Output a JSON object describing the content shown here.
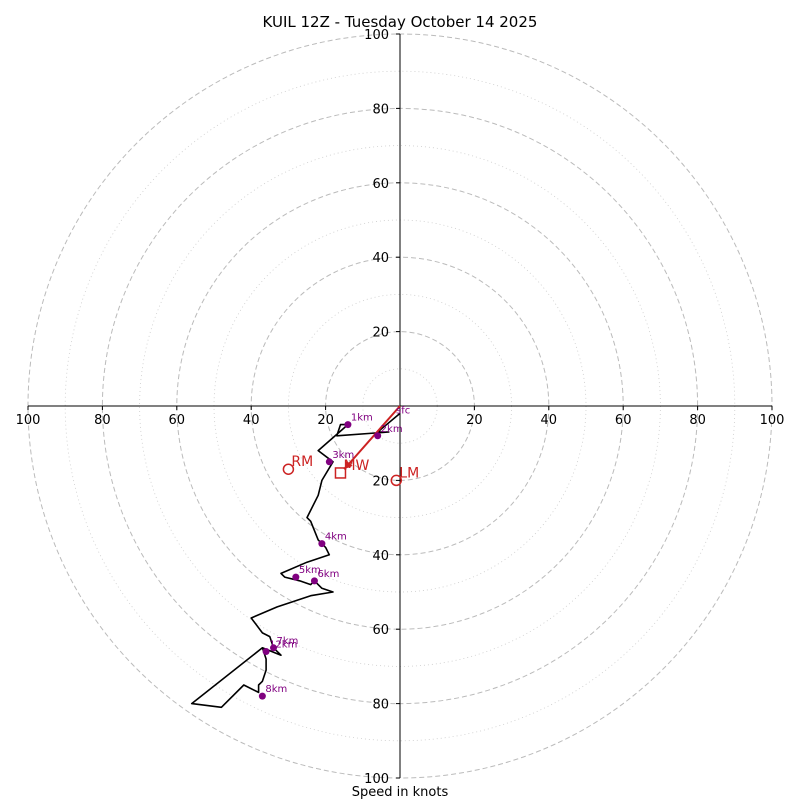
{
  "chart_data": {
    "type": "hodograph",
    "title": "KUIL 12Z - Tuesday October 14 2025",
    "xlabel": "Speed in knots",
    "xlim": [
      -100,
      100
    ],
    "ylim": [
      -100,
      100
    ],
    "ring_major": [
      20,
      40,
      60,
      80,
      100
    ],
    "ring_minor": [
      10,
      30,
      50,
      70,
      90
    ],
    "x_tick_labels": [
      "100",
      "80",
      "60",
      "40",
      "20",
      "20",
      "40",
      "60",
      "80",
      "100"
    ],
    "x_tick_values": [
      -100,
      -80,
      -60,
      -40,
      -20,
      20,
      40,
      60,
      80,
      100
    ],
    "y_top_tick_labels": [
      "20",
      "40",
      "60",
      "80",
      "100"
    ],
    "y_top_tick_values": [
      20,
      40,
      60,
      80,
      100
    ],
    "y_bottom_tick_labels": [
      "20",
      "40",
      "60",
      "80",
      "100"
    ],
    "y_bottom_tick_values": [
      -20,
      -40,
      -60,
      -80,
      -100
    ],
    "wind_trace": [
      [
        0,
        -2
      ],
      [
        -6,
        -7
      ],
      [
        -3,
        -7
      ],
      [
        -17,
        -8
      ],
      [
        -16,
        -5
      ],
      [
        -14,
        -5
      ],
      [
        -22,
        -12
      ],
      [
        -18,
        -15
      ],
      [
        -21,
        -20
      ],
      [
        -22,
        -24
      ],
      [
        -25,
        -30
      ],
      [
        -24,
        -31
      ],
      [
        -22,
        -36
      ],
      [
        -20,
        -38
      ],
      [
        -19,
        -40
      ],
      [
        -25,
        -42
      ],
      [
        -32,
        -45
      ],
      [
        -31,
        -46
      ],
      [
        -27,
        -47
      ],
      [
        -24,
        -48
      ],
      [
        -23,
        -47
      ],
      [
        -21,
        -49
      ],
      [
        -18,
        -50
      ],
      [
        -24,
        -51
      ],
      [
        -33,
        -54
      ],
      [
        -40,
        -57
      ],
      [
        -37,
        -61
      ],
      [
        -35,
        -62
      ],
      [
        -34,
        -65
      ],
      [
        -32,
        -67
      ],
      [
        -37,
        -65
      ],
      [
        -36,
        -68
      ],
      [
        -36,
        -71
      ],
      [
        -37,
        -74
      ],
      [
        -38,
        -75
      ],
      [
        -38,
        -77
      ],
      [
        -42,
        -75
      ],
      [
        -48,
        -81
      ],
      [
        -56,
        -80
      ],
      [
        -37,
        -65
      ],
      [
        -36,
        -66
      ]
    ],
    "height_markers": [
      {
        "label": "1km",
        "u": -14,
        "v": -5
      },
      {
        "label": "2km",
        "u": -6,
        "v": -8
      },
      {
        "label": "3km",
        "u": -19,
        "v": -15
      },
      {
        "label": "4km",
        "u": -21,
        "v": -37
      },
      {
        "label": "5km",
        "u": -28,
        "v": -46
      },
      {
        "label": "6km",
        "u": -23,
        "v": -47
      },
      {
        "label": "7km",
        "u": -34,
        "v": -65
      },
      {
        "label": "8km",
        "u": -37,
        "v": -78
      },
      {
        "label": "12km",
        "u": -36,
        "v": -66
      }
    ],
    "sfc_label": "sfc",
    "sfc_point": [
      0,
      -1
    ],
    "storm_motion": {
      "rm": {
        "label": "RM",
        "u": -30,
        "v": -17
      },
      "mw": {
        "label": "MW",
        "u": -16,
        "v": -18
      },
      "lm": {
        "label": "LM",
        "u": -1,
        "v": -20
      },
      "vector_to": [
        -15,
        -17
      ]
    },
    "colors": {
      "trace": "#000000",
      "marker": "#800080",
      "storm": "#cc2222",
      "grid": "#bbbbbb"
    }
  }
}
